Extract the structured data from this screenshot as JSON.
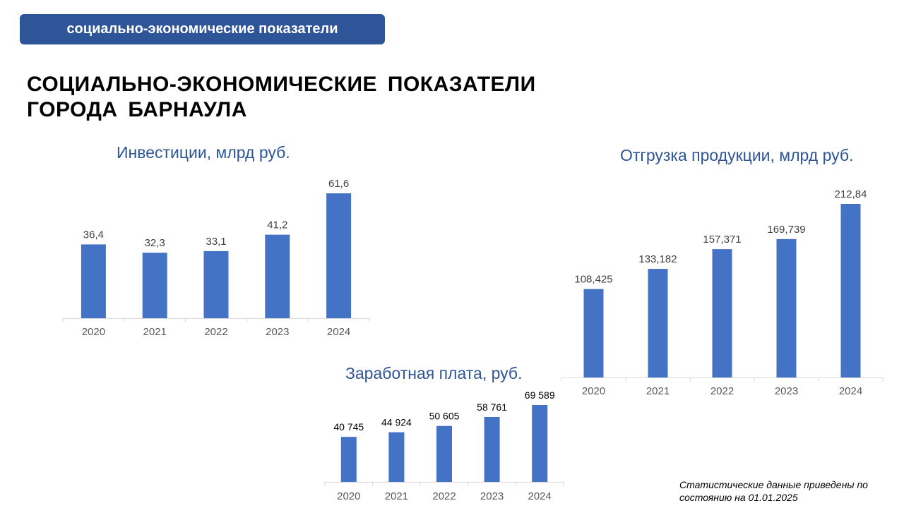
{
  "header": {
    "badge_label": "социально-экономические показатели"
  },
  "page_title": {
    "line1": "СОЦИАЛЬНО-ЭКОНОМИЧЕСКИЕ ПОКАЗАТЕЛИ",
    "line2": "ГОРОДА БАРНАУЛА"
  },
  "footnote": {
    "line1": "Статистические данные приведены по",
    "line2": "состоянию на 01.01.2025"
  },
  "colors": {
    "bar": "#4472c4",
    "title": "#2e5597",
    "header_bg": "#2e5597",
    "axis": "#d9d9d9",
    "tick_label": "#595959"
  },
  "chart_data": [
    {
      "id": "investments",
      "type": "bar",
      "title": "Инвестиции, млрд руб.",
      "categories": [
        "2020",
        "2021",
        "2022",
        "2023",
        "2024"
      ],
      "values": [
        36.4,
        32.3,
        33.1,
        41.2,
        61.6
      ],
      "data_labels": [
        "36,4",
        "32,3",
        "33,1",
        "41,2",
        "61,6"
      ],
      "ylim": [
        0,
        61.6
      ],
      "grid": false,
      "legend": "none"
    },
    {
      "id": "shipment",
      "type": "bar",
      "title": "Отгрузка продукции, млрд руб.",
      "categories": [
        "2020",
        "2021",
        "2022",
        "2023",
        "2024"
      ],
      "values": [
        108.425,
        133.182,
        157.371,
        169.739,
        212.84
      ],
      "data_labels": [
        "108,425",
        "133,182",
        "157,371",
        "169,739",
        "212,84"
      ],
      "ylim": [
        0,
        212.84
      ],
      "grid": false,
      "legend": "none"
    },
    {
      "id": "salary",
      "type": "bar",
      "title": "Заработная плата, руб.",
      "categories": [
        "2020",
        "2021",
        "2022",
        "2023",
        "2024"
      ],
      "values": [
        40745,
        44924,
        50605,
        58761,
        69589
      ],
      "data_labels": [
        "40 745",
        "44 924",
        "50 605",
        "58 761",
        "69 589"
      ],
      "ylim": [
        0,
        69589
      ],
      "grid": false,
      "legend": "none"
    }
  ]
}
